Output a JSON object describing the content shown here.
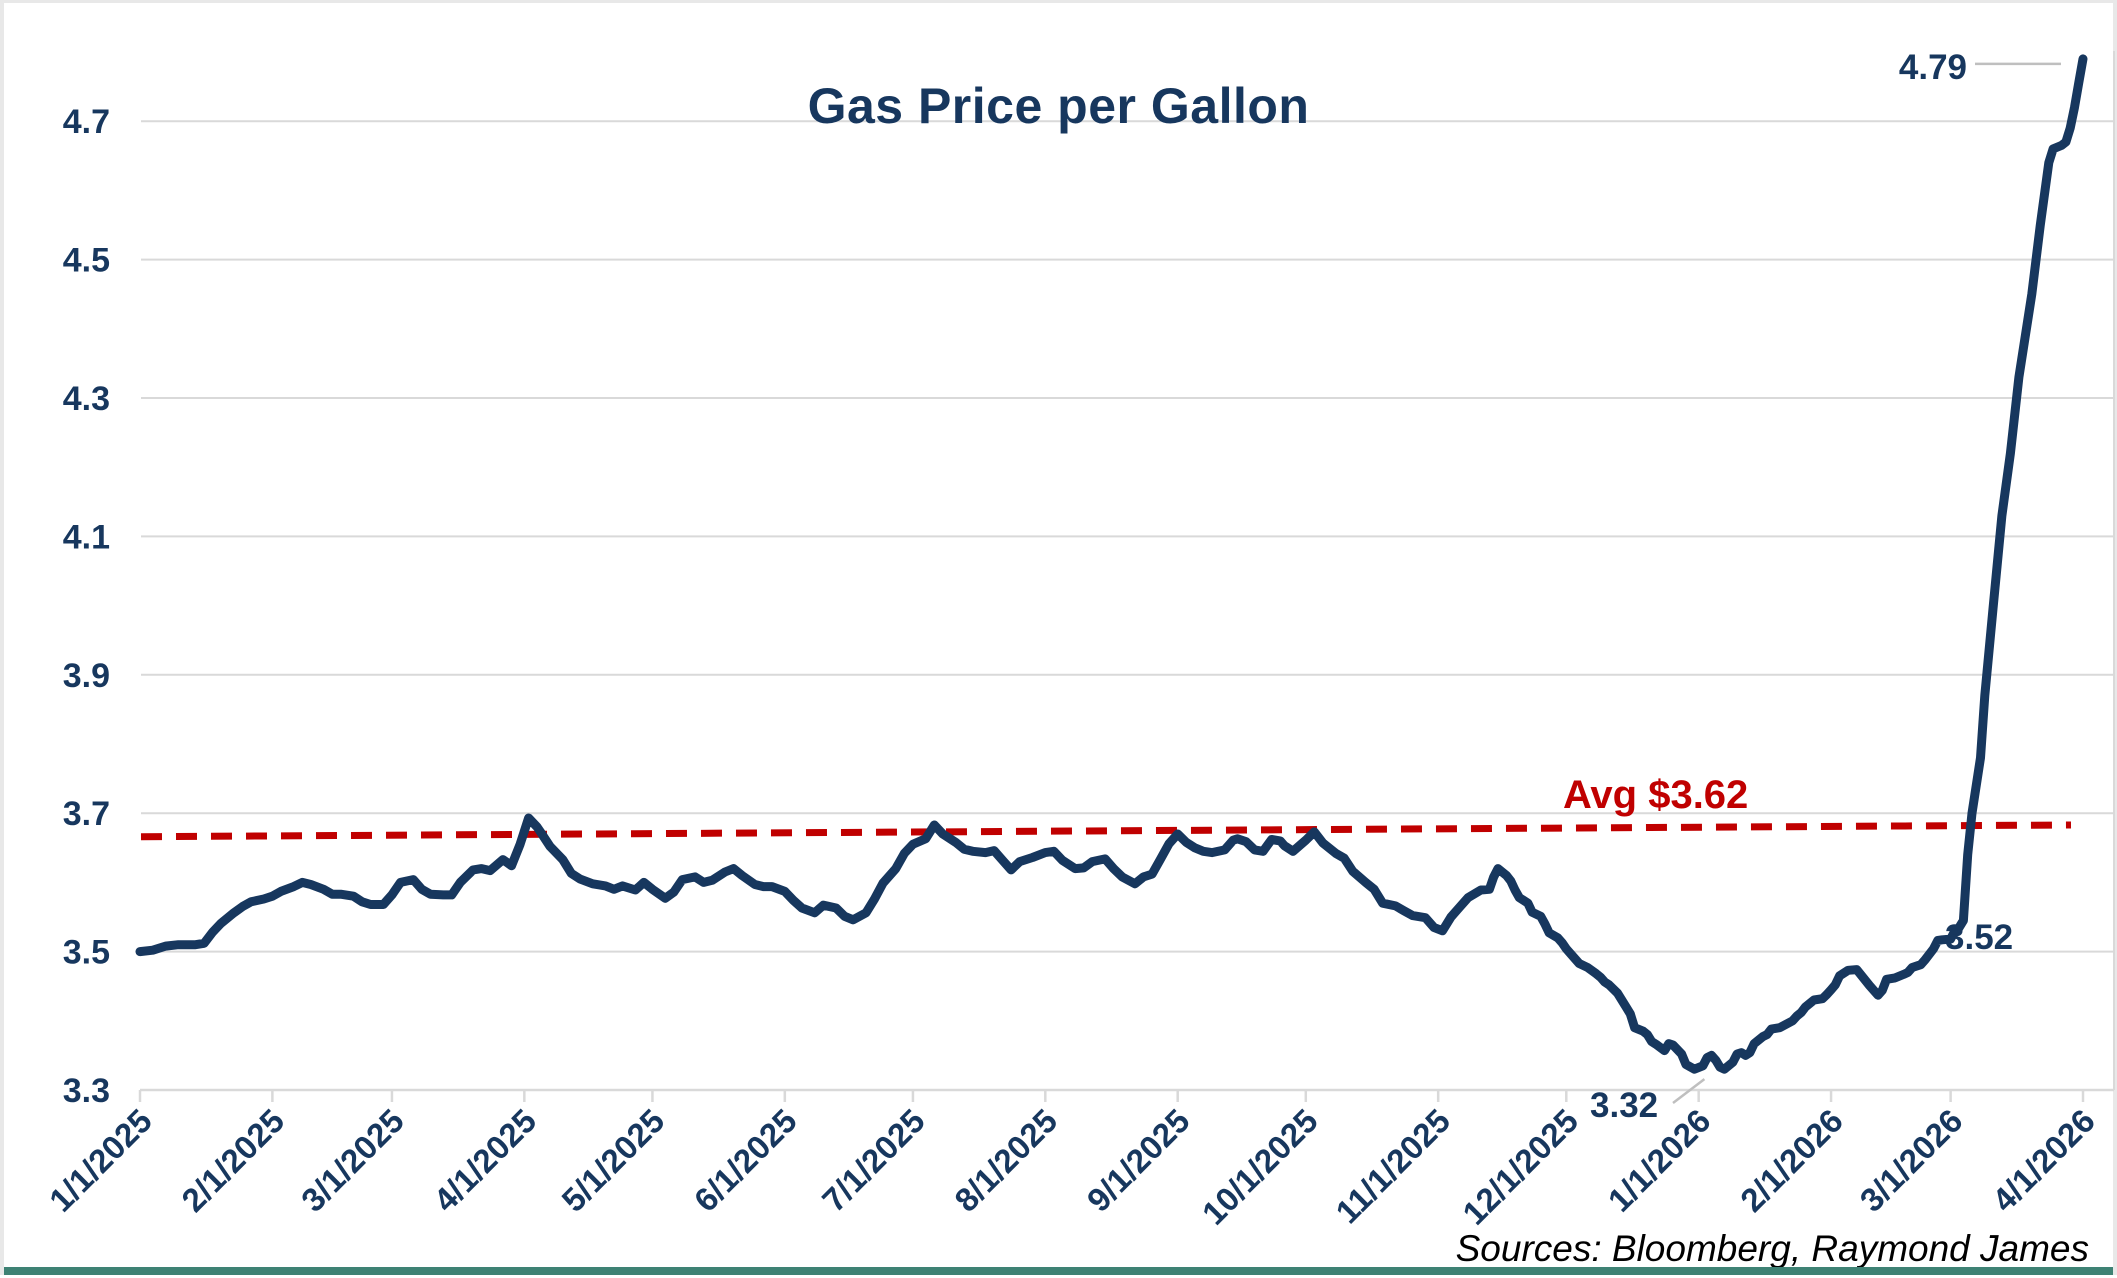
{
  "chart_data": {
    "type": "line",
    "title": "Gas Price per Gallon",
    "source_note": "Sources: Bloomberg, Raymond James",
    "y_axis": {
      "min": 3.3,
      "max": 4.806,
      "ticks": [
        3.3,
        3.5,
        3.7,
        3.9,
        4.1,
        4.3,
        4.5,
        4.7
      ],
      "grid": true
    },
    "x_axis": {
      "start": "1/1/2025",
      "end": "4/1/2026",
      "tick_labels": [
        "1/1/2025",
        "2/1/2025",
        "3/1/2025",
        "4/1/2025",
        "5/1/2025",
        "6/1/2025",
        "7/1/2025",
        "8/1/2025",
        "9/1/2025",
        "10/1/2025",
        "11/1/2025",
        "12/1/2025",
        "1/1/2026",
        "2/1/2026",
        "3/1/2026",
        "4/1/2026"
      ]
    },
    "average_line": {
      "label": "Avg $3.62",
      "value": 3.62,
      "start_value": 3.666,
      "end_value": 3.683,
      "style": "dashed"
    },
    "annotations": {
      "max": {
        "text": "4.79",
        "point": [
          "4/1/2026",
          4.79
        ]
      },
      "prespike": {
        "text": "3.52",
        "point": [
          "3/1/2026",
          3.52
        ]
      },
      "min": {
        "text": "3.32",
        "point": [
          "12/31/2025",
          3.32
        ]
      }
    },
    "series": [
      {
        "name": "Gas Price per Gallon",
        "points": [
          [
            "1/1/2025",
            3.5
          ],
          [
            "1/4/2025",
            3.502
          ],
          [
            "1/7/2025",
            3.508
          ],
          [
            "1/10/2025",
            3.51
          ],
          [
            "1/14/2025",
            3.51
          ],
          [
            "1/16/2025",
            3.512
          ],
          [
            "1/18/2025",
            3.528
          ],
          [
            "1/20/2025",
            3.541
          ],
          [
            "1/23/2025",
            3.556
          ],
          [
            "1/25/2025",
            3.565
          ],
          [
            "1/27/2025",
            3.572
          ],
          [
            "1/30/2025",
            3.576
          ],
          [
            "2/1/2025",
            3.58
          ],
          [
            "2/3/2025",
            3.587
          ],
          [
            "2/6/2025",
            3.594
          ],
          [
            "2/8/2025",
            3.6
          ],
          [
            "2/10/2025",
            3.597
          ],
          [
            "2/13/2025",
            3.59
          ],
          [
            "2/15/2025",
            3.583
          ],
          [
            "2/17/2025",
            3.583
          ],
          [
            "2/20/2025",
            3.58
          ],
          [
            "2/22/2025",
            3.572
          ],
          [
            "2/24/2025",
            3.568
          ],
          [
            "2/27/2025",
            3.568
          ],
          [
            "3/1/2025",
            3.582
          ],
          [
            "3/3/2025",
            3.6
          ],
          [
            "3/6/2025",
            3.604
          ],
          [
            "3/8/2025",
            3.59
          ],
          [
            "3/10/2025",
            3.583
          ],
          [
            "3/13/2025",
            3.582
          ],
          [
            "3/15/2025",
            3.582
          ],
          [
            "3/17/2025",
            3.6
          ],
          [
            "3/20/2025",
            3.618
          ],
          [
            "3/22/2025",
            3.62
          ],
          [
            "3/24/2025",
            3.617
          ],
          [
            "3/27/2025",
            3.633
          ],
          [
            "3/29/2025",
            3.624
          ],
          [
            "3/31/2025",
            3.655
          ],
          [
            "4/2/2025",
            3.693
          ],
          [
            "4/4/2025",
            3.68
          ],
          [
            "4/5/2025",
            3.671
          ],
          [
            "4/7/2025",
            3.652
          ],
          [
            "4/10/2025",
            3.633
          ],
          [
            "4/12/2025",
            3.613
          ],
          [
            "4/14/2025",
            3.605
          ],
          [
            "4/17/2025",
            3.598
          ],
          [
            "4/20/2025",
            3.595
          ],
          [
            "4/22/2025",
            3.59
          ],
          [
            "4/24/2025",
            3.595
          ],
          [
            "4/27/2025",
            3.589
          ],
          [
            "4/29/2025",
            3.6
          ],
          [
            "5/1/2025",
            3.59
          ],
          [
            "5/4/2025",
            3.577
          ],
          [
            "5/6/2025",
            3.586
          ],
          [
            "5/8/2025",
            3.604
          ],
          [
            "5/11/2025",
            3.608
          ],
          [
            "5/13/2025",
            3.6
          ],
          [
            "5/15/2025",
            3.603
          ],
          [
            "5/18/2025",
            3.615
          ],
          [
            "5/20/2025",
            3.62
          ],
          [
            "5/22/2025",
            3.61
          ],
          [
            "5/25/2025",
            3.597
          ],
          [
            "5/27/2025",
            3.594
          ],
          [
            "5/29/2025",
            3.594
          ],
          [
            "6/1/2025",
            3.587
          ],
          [
            "6/3/2025",
            3.574
          ],
          [
            "6/5/2025",
            3.563
          ],
          [
            "6/8/2025",
            3.556
          ],
          [
            "6/10/2025",
            3.567
          ],
          [
            "6/13/2025",
            3.563
          ],
          [
            "6/15/2025",
            3.551
          ],
          [
            "6/17/2025",
            3.546
          ],
          [
            "6/20/2025",
            3.556
          ],
          [
            "6/22/2025",
            3.576
          ],
          [
            "6/24/2025",
            3.599
          ],
          [
            "6/27/2025",
            3.62
          ],
          [
            "6/29/2025",
            3.642
          ],
          [
            "7/1/2025",
            3.655
          ],
          [
            "7/4/2025",
            3.663
          ],
          [
            "7/6/2025",
            3.683
          ],
          [
            "7/8/2025",
            3.67
          ],
          [
            "7/11/2025",
            3.658
          ],
          [
            "7/13/2025",
            3.648
          ],
          [
            "7/15/2025",
            3.645
          ],
          [
            "7/18/2025",
            3.643
          ],
          [
            "7/20/2025",
            3.646
          ],
          [
            "7/22/2025",
            3.632
          ],
          [
            "7/24/2025",
            3.618
          ],
          [
            "7/26/2025",
            3.63
          ],
          [
            "7/29/2025",
            3.636
          ],
          [
            "8/1/2025",
            3.643
          ],
          [
            "8/3/2025",
            3.645
          ],
          [
            "8/5/2025",
            3.632
          ],
          [
            "8/8/2025",
            3.62
          ],
          [
            "8/10/2025",
            3.621
          ],
          [
            "8/12/2025",
            3.63
          ],
          [
            "8/15/2025",
            3.634
          ],
          [
            "8/17/2025",
            3.62
          ],
          [
            "8/19/2025",
            3.608
          ],
          [
            "8/22/2025",
            3.598
          ],
          [
            "8/24/2025",
            3.608
          ],
          [
            "8/26/2025",
            3.612
          ],
          [
            "8/28/2025",
            3.634
          ],
          [
            "8/30/2025",
            3.656
          ],
          [
            "9/1/2025",
            3.67
          ],
          [
            "9/3/2025",
            3.658
          ],
          [
            "9/5/2025",
            3.65
          ],
          [
            "9/7/2025",
            3.645
          ],
          [
            "9/9/2025",
            3.643
          ],
          [
            "9/12/2025",
            3.647
          ],
          [
            "9/14/2025",
            3.661
          ],
          [
            "9/15/2025",
            3.663
          ],
          [
            "9/17/2025",
            3.659
          ],
          [
            "9/19/2025",
            3.647
          ],
          [
            "9/21/2025",
            3.645
          ],
          [
            "9/23/2025",
            3.662
          ],
          [
            "9/25/2025",
            3.66
          ],
          [
            "9/26/2025",
            3.653
          ],
          [
            "9/28/2025",
            3.645
          ],
          [
            "10/1/2025",
            3.661
          ],
          [
            "10/3/2025",
            3.673
          ],
          [
            "10/5/2025",
            3.657
          ],
          [
            "10/8/2025",
            3.642
          ],
          [
            "10/10/2025",
            3.635
          ],
          [
            "10/12/2025",
            3.616
          ],
          [
            "10/15/2025",
            3.6
          ],
          [
            "10/17/2025",
            3.59
          ],
          [
            "10/19/2025",
            3.57
          ],
          [
            "10/22/2025",
            3.566
          ],
          [
            "10/24/2025",
            3.559
          ],
          [
            "10/26/2025",
            3.552
          ],
          [
            "10/29/2025",
            3.549
          ],
          [
            "10/31/2025",
            3.535
          ],
          [
            "11/2/2025",
            3.53
          ],
          [
            "11/4/2025",
            3.55
          ],
          [
            "11/6/2025",
            3.564
          ],
          [
            "11/8/2025",
            3.578
          ],
          [
            "11/11/2025",
            3.589
          ],
          [
            "11/13/2025",
            3.59
          ],
          [
            "11/14/2025",
            3.608
          ],
          [
            "11/15/2025",
            3.62
          ],
          [
            "11/17/2025",
            3.61
          ],
          [
            "11/18/2025",
            3.602
          ],
          [
            "11/19/2025",
            3.589
          ],
          [
            "11/20/2025",
            3.578
          ],
          [
            "11/22/2025",
            3.57
          ],
          [
            "11/23/2025",
            3.557
          ],
          [
            "11/25/2025",
            3.551
          ],
          [
            "11/26/2025",
            3.54
          ],
          [
            "11/27/2025",
            3.527
          ],
          [
            "11/29/2025",
            3.52
          ],
          [
            "11/30/2025",
            3.513
          ],
          [
            "12/1/2025",
            3.504
          ],
          [
            "12/3/2025",
            3.49
          ],
          [
            "12/4/2025",
            3.483
          ],
          [
            "12/6/2025",
            3.477
          ],
          [
            "12/8/2025",
            3.468
          ],
          [
            "12/9/2025",
            3.463
          ],
          [
            "12/10/2025",
            3.456
          ],
          [
            "12/11/2025",
            3.452
          ],
          [
            "12/13/2025",
            3.44
          ],
          [
            "12/15/2025",
            3.42
          ],
          [
            "12/16/2025",
            3.41
          ],
          [
            "12/17/2025",
            3.39
          ],
          [
            "12/19/2025",
            3.385
          ],
          [
            "12/20/2025",
            3.38
          ],
          [
            "12/21/2025",
            3.37
          ],
          [
            "12/22/2025",
            3.366
          ],
          [
            "12/24/2025",
            3.357
          ],
          [
            "12/25/2025",
            3.367
          ],
          [
            "12/26/2025",
            3.365
          ],
          [
            "12/28/2025",
            3.352
          ],
          [
            "12/29/2025",
            3.337
          ],
          [
            "12/31/2025",
            3.33
          ],
          [
            "1/2/2026",
            3.335
          ],
          [
            "1/3/2026",
            3.347
          ],
          [
            "1/4/2026",
            3.35
          ],
          [
            "1/5/2026",
            3.343
          ],
          [
            "1/6/2026",
            3.333
          ],
          [
            "1/7/2026",
            3.33
          ],
          [
            "1/9/2026",
            3.34
          ],
          [
            "1/10/2026",
            3.352
          ],
          [
            "1/11/2026",
            3.354
          ],
          [
            "1/12/2026",
            3.35
          ],
          [
            "1/13/2026",
            3.354
          ],
          [
            "1/14/2026",
            3.367
          ],
          [
            "1/16/2026",
            3.377
          ],
          [
            "1/17/2026",
            3.38
          ],
          [
            "1/18/2026",
            3.388
          ],
          [
            "1/20/2026",
            3.39
          ],
          [
            "1/23/2026",
            3.4
          ],
          [
            "1/24/2026",
            3.407
          ],
          [
            "1/25/2026",
            3.412
          ],
          [
            "1/26/2026",
            3.42
          ],
          [
            "1/27/2026",
            3.425
          ],
          [
            "1/28/2026",
            3.43
          ],
          [
            "1/30/2026",
            3.432
          ],
          [
            "1/31/2026",
            3.438
          ],
          [
            "2/1/2026",
            3.445
          ],
          [
            "2/2/2026",
            3.452
          ],
          [
            "2/3/2026",
            3.465
          ],
          [
            "2/5/2026",
            3.473
          ],
          [
            "2/7/2026",
            3.474
          ],
          [
            "2/10/2026",
            3.451
          ],
          [
            "2/12/2026",
            3.437
          ],
          [
            "2/13/2026",
            3.444
          ],
          [
            "2/14/2026",
            3.46
          ],
          [
            "2/16/2026",
            3.462
          ],
          [
            "2/18/2026",
            3.467
          ],
          [
            "2/19/2026",
            3.47
          ],
          [
            "2/20/2026",
            3.477
          ],
          [
            "2/22/2026",
            3.481
          ],
          [
            "2/23/2026",
            3.488
          ],
          [
            "2/25/2026",
            3.504
          ],
          [
            "2/26/2026",
            3.516
          ],
          [
            "2/27/2026",
            3.517
          ],
          [
            "3/1/2026",
            3.518
          ],
          [
            "3/2/2026",
            3.53
          ],
          [
            "3/3/2026",
            3.535
          ],
          [
            "3/4/2026",
            3.545
          ],
          [
            "3/5/2026",
            3.64
          ],
          [
            "3/6/2026",
            3.7
          ],
          [
            "3/8/2026",
            3.78
          ],
          [
            "3/9/2026",
            3.87
          ],
          [
            "3/11/2026",
            4.0
          ],
          [
            "3/13/2026",
            4.13
          ],
          [
            "3/15/2026",
            4.22
          ],
          [
            "3/17/2026",
            4.33
          ],
          [
            "3/20/2026",
            4.45
          ],
          [
            "3/22/2026",
            4.55
          ],
          [
            "3/24/2026",
            4.64
          ],
          [
            "3/25/2026",
            4.66
          ],
          [
            "3/27/2026",
            4.665
          ],
          [
            "3/28/2026",
            4.67
          ],
          [
            "3/29/2026",
            4.69
          ],
          [
            "3/30/2026",
            4.72
          ],
          [
            "3/31/2026",
            4.755
          ],
          [
            "4/1/2026",
            4.79
          ]
        ]
      }
    ],
    "colors": {
      "line": "#17375E",
      "average_line": "#C00000",
      "grid": "#D9D9D9",
      "axis_text": "#17375E",
      "leader": "#BFBFBF",
      "window_border": "#E8E8E8",
      "window_bottom_bar": "#3E8274"
    }
  }
}
